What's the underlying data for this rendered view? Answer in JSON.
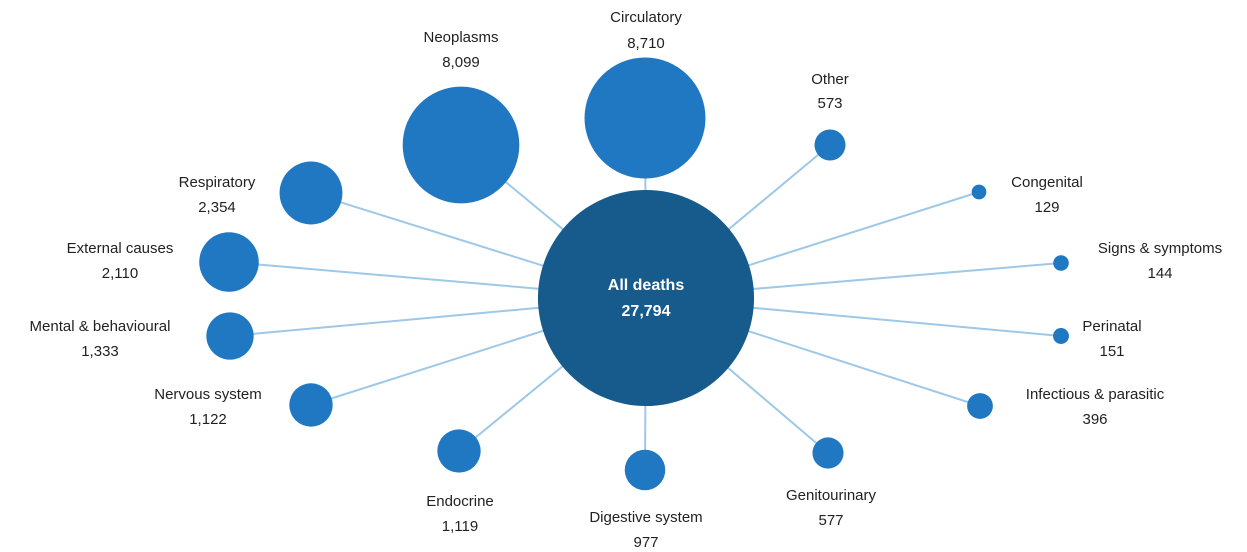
{
  "chart_data": {
    "type": "bubble",
    "center": {
      "name": "All deaths",
      "value": 27794,
      "value_label": "27,794",
      "color": "#175a8c"
    },
    "color": "#1f78c1",
    "line_color": "#9dc8e8",
    "categories": [
      "Circulatory",
      "Other",
      "Congenital",
      "Signs & symptoms",
      "Perinatal",
      "Infectious & parasitic",
      "Genitourinary",
      "Digestive system",
      "Endocrine",
      "Nervous system",
      "Mental & behavioural",
      "External causes",
      "Respiratory",
      "Neoplasms"
    ],
    "values": [
      8710,
      573,
      129,
      144,
      151,
      396,
      577,
      977,
      1119,
      1122,
      1333,
      2110,
      2354,
      8099
    ],
    "value_labels": [
      "8,710",
      "573",
      "129",
      "144",
      "151",
      "396",
      "577",
      "977",
      "1,119",
      "1,122",
      "1,333",
      "2,110",
      "2,354",
      "8,099"
    ]
  }
}
